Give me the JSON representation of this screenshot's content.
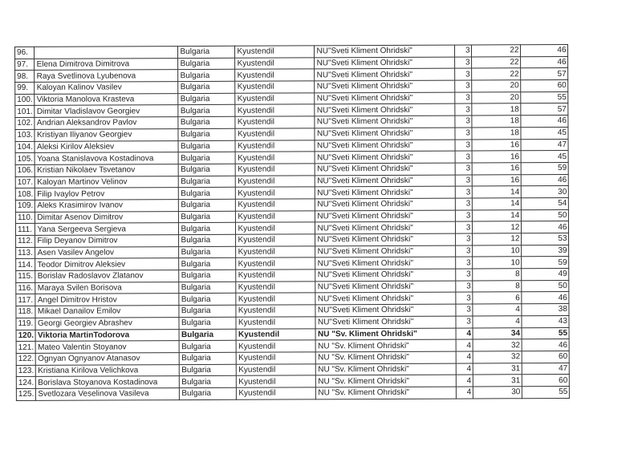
{
  "rows": [
    {
      "no": "96.",
      "name": "",
      "country": "Bulgaria",
      "city": "Kyustendil",
      "school": "NU\"Sveti Kliment Ohridski\"",
      "grade": 3,
      "score": 22,
      "points": 46
    },
    {
      "no": "97.",
      "name": "Elena Dimitrova Dimitrova",
      "country": "Bulgaria",
      "city": "Kyustendil",
      "school": "NU\"Sveti Kliment Ohridski\"",
      "grade": 3,
      "score": 22,
      "points": 46
    },
    {
      "no": "98.",
      "name": "Raya Svetlinova Lyubenova",
      "country": "Bulgaria",
      "city": "Kyustendil",
      "school": "NU\"Sveti Kliment Ohridski\"",
      "grade": 3,
      "score": 22,
      "points": 57
    },
    {
      "no": "99.",
      "name": "Kaloyan Kalinov Vasilev",
      "country": "Bulgaria",
      "city": "Kyustendil",
      "school": "NU\"Sveti Kliment Ohridski\"",
      "grade": 3,
      "score": 20,
      "points": 60
    },
    {
      "no": "100.",
      "name": "Viktoria Manolova Krasteva",
      "country": "Bulgaria",
      "city": "Kyustendil",
      "school": "NU\"Sveti Kliment Ohridski\"",
      "grade": 3,
      "score": 20,
      "points": 55
    },
    {
      "no": "101.",
      "name": "Dimitar Vladislavov Georgiev",
      "country": "Bulgaria",
      "city": "Kyustendil",
      "school": "NU\"Sveti Kliment Ohridski\"",
      "grade": 3,
      "score": 18,
      "points": 57
    },
    {
      "no": "102.",
      "name": "Andrian Aleksandrov Pavlov",
      "country": "Bulgaria",
      "city": "Kyustendil",
      "school": "NU\"Sveti Kliment Ohridski\"",
      "grade": 3,
      "score": 18,
      "points": 46
    },
    {
      "no": "103.",
      "name": "Kristiyan Iliyanov Georgiev",
      "country": "Bulgaria",
      "city": "Kyustendil",
      "school": "NU\"Sveti Kliment Ohridski\"",
      "grade": 3,
      "score": 18,
      "points": 45
    },
    {
      "no": "104.",
      "name": "Aleksi Kirilov Aleksiev",
      "country": "Bulgaria",
      "city": "Kyustendil",
      "school": "NU\"Sveti Kliment Ohridski\"",
      "grade": 3,
      "score": 16,
      "points": 47
    },
    {
      "no": "105.",
      "name": "Yoana Stanislavova Kostadinova",
      "country": "Bulgaria",
      "city": "Kyustendil",
      "school": "NU\"Sveti Kliment Ohridski\"",
      "grade": 3,
      "score": 16,
      "points": 45
    },
    {
      "no": "106.",
      "name": "Kristian Nikolaev Tsvetanov",
      "country": "Bulgaria",
      "city": "Kyustendil",
      "school": "NU\"Sveti Kliment Ohridski\"",
      "grade": 3,
      "score": 16,
      "points": 59
    },
    {
      "no": "107.",
      "name": "Kaloyan Martinov Velinov",
      "country": "Bulgaria",
      "city": "Kyustendil",
      "school": "NU\"Sveti Kliment Ohridski\"",
      "grade": 3,
      "score": 16,
      "points": 46
    },
    {
      "no": "108.",
      "name": "Filip Ivaylov Petrov",
      "country": "Bulgaria",
      "city": "Kyustendil",
      "school": "NU\"Sveti Kliment Ohridski\"",
      "grade": 3,
      "score": 14,
      "points": 30
    },
    {
      "no": "109.",
      "name": "Aleks Krasimirov Ivanov",
      "country": "Bulgaria",
      "city": "Kyustendil",
      "school": "NU\"Sveti Kliment Ohridski\"",
      "grade": 3,
      "score": 14,
      "points": 54
    },
    {
      "no": "110.",
      "name": "Dimitar Asenov Dimitrov",
      "country": "Bulgaria",
      "city": "Kyustendil",
      "school": "NU\"Sveti Kliment Ohridski\"",
      "grade": 3,
      "score": 14,
      "points": 50
    },
    {
      "no": "111.",
      "name": "Yana Sergeeva Sergieva",
      "country": "Bulgaria",
      "city": "Kyustendil",
      "school": "NU\"Sveti Kliment Ohridski\"",
      "grade": 3,
      "score": 12,
      "points": 46
    },
    {
      "no": "112.",
      "name": "Filip Deyanov Dimitrov",
      "country": "Bulgaria",
      "city": "Kyustendil",
      "school": "NU\"Sveti Kliment Ohridski\"",
      "grade": 3,
      "score": 12,
      "points": 53
    },
    {
      "no": "113.",
      "name": "Asen Vasilev Angelov",
      "country": "Bulgaria",
      "city": "Kyustendil",
      "school": "NU\"Sveti Kliment Ohridski\"",
      "grade": 3,
      "score": 10,
      "points": 39
    },
    {
      "no": "114.",
      "name": "Teodor Dimitrov Aleksiev",
      "country": "Bulgaria",
      "city": "Kyustendil",
      "school": "NU\"Sveti Kliment Ohridski\"",
      "grade": 3,
      "score": 10,
      "points": 59
    },
    {
      "no": "115.",
      "name": "Borislav Radoslavov Zlatanov",
      "country": "Bulgaria",
      "city": "Kyustendil",
      "school": "NU\"Sveti Kliment Ohridski\"",
      "grade": 3,
      "score": 8,
      "points": 49
    },
    {
      "no": "116.",
      "name": "Maraya Svilen Borisova",
      "country": "Bulgaria",
      "city": "Kyustendil",
      "school": "NU\"Sveti Kliment Ohridski\"",
      "grade": 3,
      "score": 8,
      "points": 50
    },
    {
      "no": "117.",
      "name": "Angel Dimitrov Hristov",
      "country": "Bulgaria",
      "city": "Kyustendil",
      "school": "NU\"Sveti Kliment Ohridski\"",
      "grade": 3,
      "score": 6,
      "points": 46
    },
    {
      "no": "118.",
      "name": "Mikael Danailov Emilov",
      "country": "Bulgaria",
      "city": "Kyustendil",
      "school": "NU\"Sveti Kliment Ohridski\"",
      "grade": 3,
      "score": 4,
      "points": 38
    },
    {
      "no": "119.",
      "name": "Georgi Georgiev Abrashev",
      "country": "Bulgaria",
      "city": "Kyustendil",
      "school": "NU\"Sveti Kliment Ohridski\"",
      "grade": 3,
      "score": 4,
      "points": 43
    },
    {
      "no": "120.",
      "name": "Viktoria MartinTodorova",
      "country": "Bulgaria",
      "city": "Kyustendil",
      "school": "NU \"Sv. Kliment Ohridski\"",
      "grade": 4,
      "score": 34,
      "points": 55,
      "bold": true
    },
    {
      "no": "121.",
      "name": "Mateo Valentin Stoyanov",
      "country": "Bulgaria",
      "city": "Kyustendil",
      "school": "NU \"Sv. Kliment Ohridski\"",
      "grade": 4,
      "score": 32,
      "points": 46
    },
    {
      "no": "122.",
      "name": "Ognyan Ognyanov Atanasov",
      "country": "Bulgaria",
      "city": "Kyustendil",
      "school": "NU \"Sv. Kliment Ohridski\"",
      "grade": 4,
      "score": 32,
      "points": 60
    },
    {
      "no": "123.",
      "name": "Kristiana Kirilova Velichkova",
      "country": "Bulgaria",
      "city": "Kyustendil",
      "school": "NU \"Sv. Kliment Ohridski\"",
      "grade": 4,
      "score": 31,
      "points": 47
    },
    {
      "no": "124.",
      "name": "Borislava Stoyanova Kostadinova",
      "country": "Bulgaria",
      "city": "Kyustendil",
      "school": "NU \"Sv. Kliment Ohridski\"",
      "grade": 4,
      "score": 31,
      "points": 60
    },
    {
      "no": "125.",
      "name": "Svetlozara Veselinova Vasileva",
      "country": "Bulgaria",
      "city": "Kyustendil",
      "school": "NU \"Sv. Kliment Ohridski\"",
      "grade": 4,
      "score": 30,
      "points": 55
    }
  ]
}
